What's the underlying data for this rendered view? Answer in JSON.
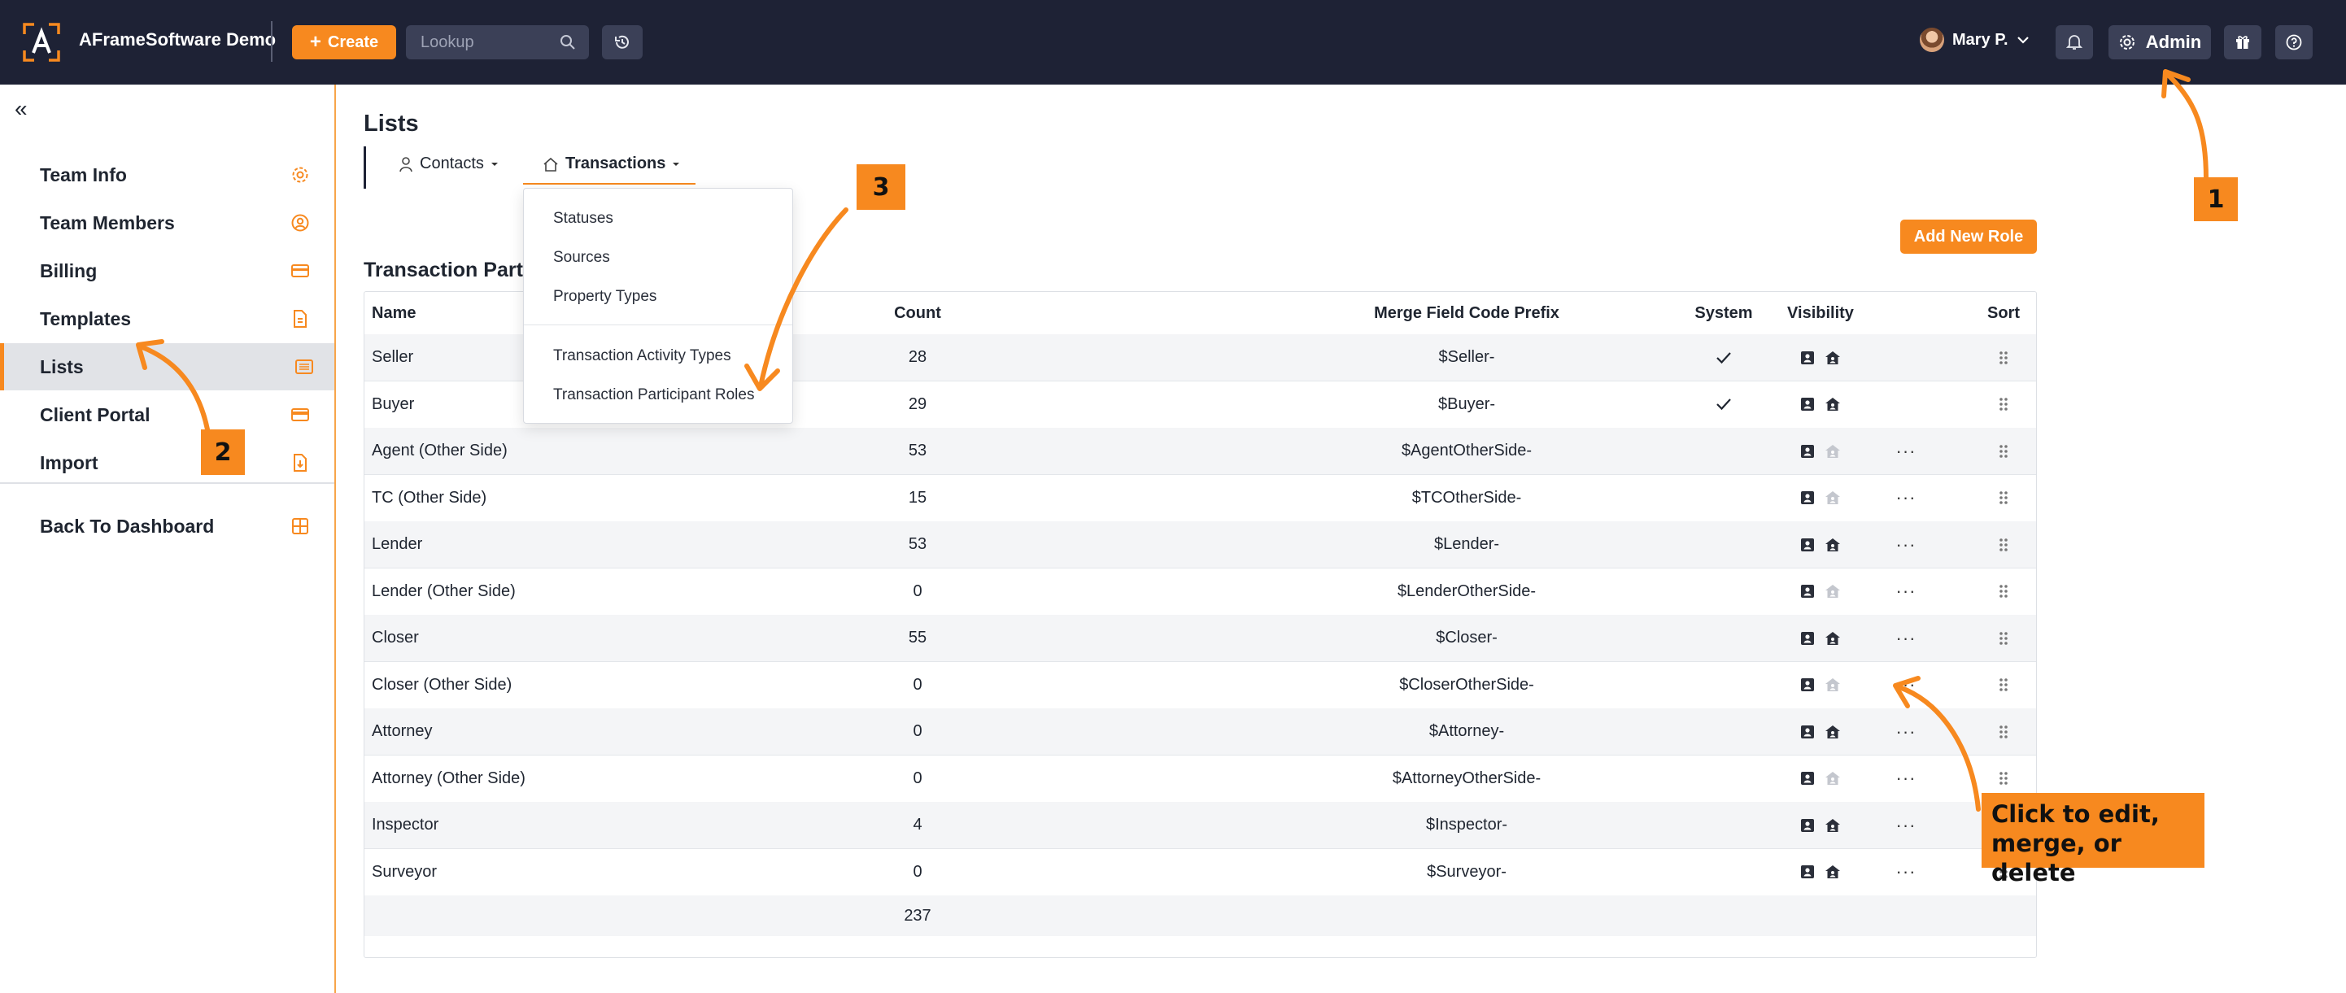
{
  "topbar": {
    "app_name": "AFrameSoftware Demo",
    "create_label": "Create",
    "lookup_placeholder": "Lookup",
    "user_name": "Mary P.",
    "admin_label": "Admin"
  },
  "sidebar": {
    "items": [
      {
        "label": "Team Info",
        "icon": "gear-icon"
      },
      {
        "label": "Team Members",
        "icon": "user-circle-icon"
      },
      {
        "label": "Billing",
        "icon": "credit-card-icon"
      },
      {
        "label": "Templates",
        "icon": "document-icon"
      },
      {
        "label": "Lists",
        "icon": "list-icon",
        "active": true
      },
      {
        "label": "Client Portal",
        "icon": "card-icon"
      },
      {
        "label": "Import",
        "icon": "import-file-icon"
      }
    ],
    "back_label": "Back To Dashboard"
  },
  "page": {
    "title": "Lists",
    "tabs": [
      {
        "label": "Contacts",
        "icon": "person-icon"
      },
      {
        "label": "Transactions",
        "icon": "house-icon",
        "active": true
      }
    ],
    "dropdown": [
      "Statuses",
      "Sources",
      "Property Types",
      "Transaction Activity Types",
      "Transaction Participant Roles"
    ],
    "section_title": "Transaction Participant Roles",
    "add_button": "Add New Role"
  },
  "table": {
    "headers": {
      "name": "Name",
      "count": "Count",
      "merge": "Merge Field Code Prefix",
      "visibility": "Visibility",
      "system": "System",
      "sort": "Sort"
    },
    "rows": [
      {
        "name": "Seller",
        "count": "28",
        "merge": "$Seller-",
        "portal_visible": true,
        "system": true
      },
      {
        "name": "Buyer",
        "count": "29",
        "merge": "$Buyer-",
        "portal_visible": true,
        "system": true
      },
      {
        "name": "Agent (Other Side)",
        "count": "53",
        "merge": "$AgentOtherSide-",
        "portal_visible": false,
        "system": false
      },
      {
        "name": "TC (Other Side)",
        "count": "15",
        "merge": "$TCOtherSide-",
        "portal_visible": false,
        "system": false
      },
      {
        "name": "Lender",
        "count": "53",
        "merge": "$Lender-",
        "portal_visible": true,
        "system": false
      },
      {
        "name": "Lender (Other Side)",
        "count": "0",
        "merge": "$LenderOtherSide-",
        "portal_visible": false,
        "system": false
      },
      {
        "name": "Closer",
        "count": "55",
        "merge": "$Closer-",
        "portal_visible": true,
        "system": false
      },
      {
        "name": "Closer (Other Side)",
        "count": "0",
        "merge": "$CloserOtherSide-",
        "portal_visible": false,
        "system": false
      },
      {
        "name": "Attorney",
        "count": "0",
        "merge": "$Attorney-",
        "portal_visible": true,
        "system": false
      },
      {
        "name": "Attorney (Other Side)",
        "count": "0",
        "merge": "$AttorneyOtherSide-",
        "portal_visible": false,
        "system": false
      },
      {
        "name": "Inspector",
        "count": "4",
        "merge": "$Inspector-",
        "portal_visible": true,
        "system": false
      },
      {
        "name": "Surveyor",
        "count": "0",
        "merge": "$Surveyor-",
        "portal_visible": true,
        "system": false
      }
    ],
    "total": "237"
  },
  "annotations": {
    "step1": "1",
    "step2": "2",
    "step3": "3",
    "callout": [
      "Click to edit,",
      "merge, or delete"
    ]
  },
  "colors": {
    "accent": "#f7891f",
    "topbar": "#1e2235",
    "active_bg": "#e1e3e7"
  }
}
